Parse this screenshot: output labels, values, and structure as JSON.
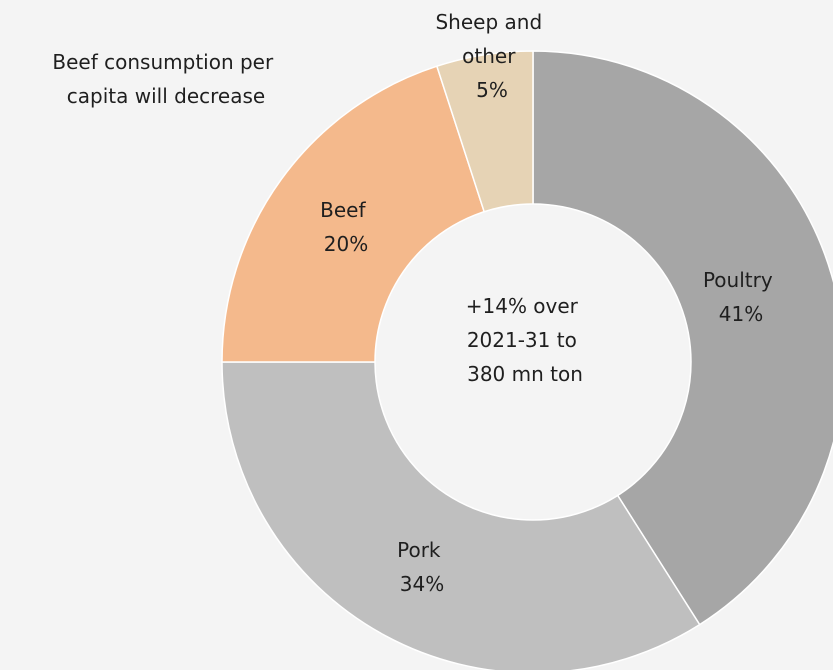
{
  "chart_data": {
    "type": "pie",
    "variant": "donut",
    "slices": [
      {
        "name": "Poultry",
        "value": 41,
        "label": "41%",
        "color": "#a6a6a6"
      },
      {
        "name": "Pork",
        "value": 34,
        "label": "34%",
        "color": "#bfbfbf"
      },
      {
        "name": "Beef",
        "value": 20,
        "label": "20%",
        "color": "#f4b98c"
      },
      {
        "name": "Sheep and other",
        "value": 5,
        "label": "5%",
        "color": "#e6d3b5"
      }
    ],
    "center_text": [
      "+14% over",
      "2021-31 to",
      "380 mn ton"
    ],
    "annotation": [
      "Beef consumption per",
      "capita will decrease"
    ],
    "legend": "none"
  },
  "colors": {
    "background": "#f4f4f4",
    "hole": "#f4f4f4",
    "slice_border": "#ffffff"
  }
}
